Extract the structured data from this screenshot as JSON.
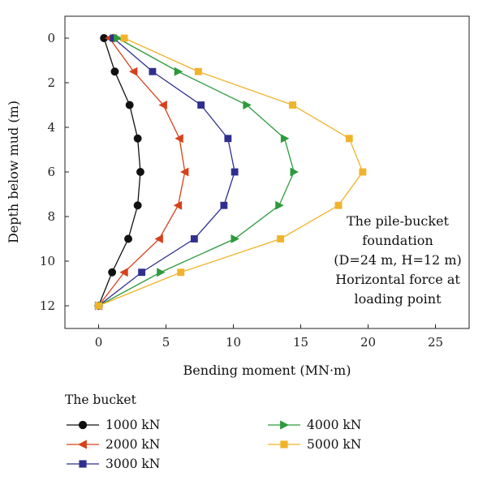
{
  "chart_data": {
    "type": "line",
    "xlabel": "Bending moment (MN·m)",
    "ylabel": "Depth below mud (m)",
    "xlim": [
      -2.5,
      27.5
    ],
    "ylim": [
      0,
      13
    ],
    "y_inverted": true,
    "x_ticks": [
      0,
      5,
      10,
      15,
      20,
      25
    ],
    "y_ticks": [
      0,
      2,
      4,
      6,
      8,
      10,
      12
    ],
    "grid": false,
    "legend_title": "The bucket",
    "legend_position": "below",
    "annotation": [
      "The pile-bucket",
      "foundation",
      "(D=24 m, H=12 m)",
      "Horizontal force at",
      "loading point"
    ],
    "series": [
      {
        "name": "1000 kN",
        "color": "#111111",
        "marker": "circle",
        "points": [
          [
            0.4,
            0
          ],
          [
            1.2,
            1.5
          ],
          [
            2.3,
            3.0
          ],
          [
            2.9,
            4.5
          ],
          [
            3.1,
            6.0
          ],
          [
            2.9,
            7.5
          ],
          [
            2.2,
            9.0
          ],
          [
            1.0,
            10.5
          ],
          [
            0,
            12
          ]
        ]
      },
      {
        "name": "2000 kN",
        "color": "#d6411b",
        "marker": "triangle-left",
        "points": [
          [
            0.8,
            0
          ],
          [
            2.6,
            1.5
          ],
          [
            4.8,
            3.0
          ],
          [
            6.0,
            4.5
          ],
          [
            6.4,
            6.0
          ],
          [
            5.9,
            7.5
          ],
          [
            4.5,
            9.0
          ],
          [
            1.9,
            10.5
          ],
          [
            0,
            12
          ]
        ]
      },
      {
        "name": "3000 kN",
        "color": "#2e2f8e",
        "marker": "square",
        "points": [
          [
            1.1,
            0
          ],
          [
            4.0,
            1.5
          ],
          [
            7.6,
            3.0
          ],
          [
            9.6,
            4.5
          ],
          [
            10.1,
            6.0
          ],
          [
            9.3,
            7.5
          ],
          [
            7.1,
            9.0
          ],
          [
            3.2,
            10.5
          ],
          [
            0,
            12
          ]
        ]
      },
      {
        "name": "4000 kN",
        "color": "#2d9a3c",
        "marker": "triangle-right",
        "points": [
          [
            1.4,
            0
          ],
          [
            5.9,
            1.5
          ],
          [
            11.0,
            3.0
          ],
          [
            13.8,
            4.5
          ],
          [
            14.5,
            6.0
          ],
          [
            13.4,
            7.5
          ],
          [
            10.1,
            9.0
          ],
          [
            4.6,
            10.5
          ],
          [
            0,
            12
          ]
        ]
      },
      {
        "name": "5000 kN",
        "color": "#f0b32a",
        "marker": "square",
        "points": [
          [
            1.9,
            0
          ],
          [
            7.4,
            1.5
          ],
          [
            14.4,
            3.0
          ],
          [
            18.6,
            4.5
          ],
          [
            19.6,
            6.0
          ],
          [
            17.8,
            7.5
          ],
          [
            13.5,
            9.0
          ],
          [
            6.1,
            10.5
          ],
          [
            0,
            12
          ]
        ]
      }
    ]
  }
}
